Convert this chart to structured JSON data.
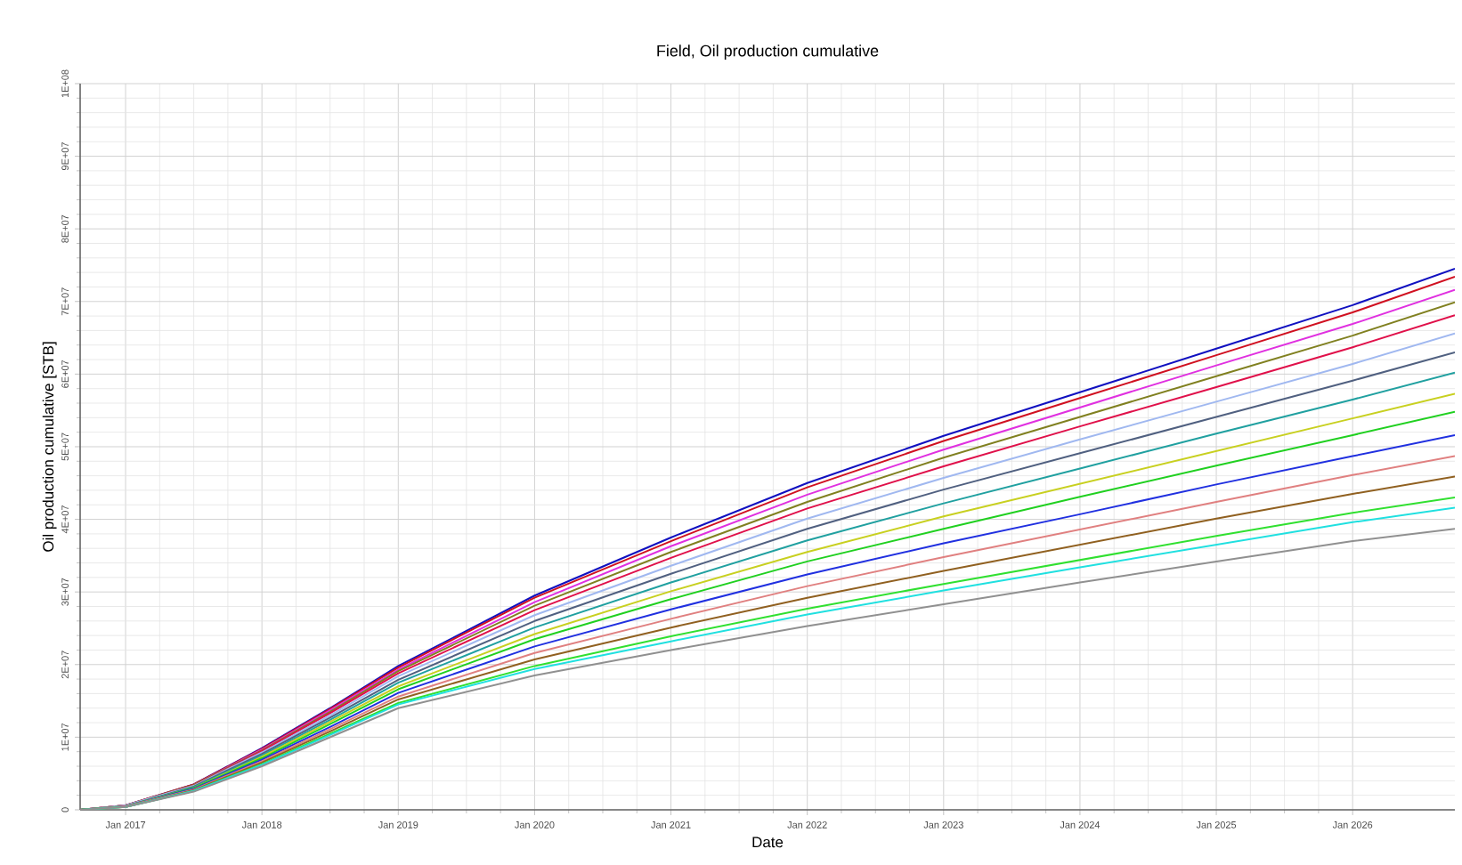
{
  "chart_data": {
    "type": "line",
    "title": "Field, Oil production cumulative",
    "xlabel": "Date",
    "ylabel": "Oil production cumulative [STB]",
    "x": [
      "2016-09",
      "2017-01",
      "2017-07",
      "2018-01",
      "2018-07",
      "2019-01",
      "2020-01",
      "2021-01",
      "2022-01",
      "2023-01",
      "2024-01",
      "2025-01",
      "2026-01",
      "2026-10"
    ],
    "xlim": [
      "2016-09",
      "2026-10"
    ],
    "xticks": [
      {
        "value": "2017-01",
        "label": "Jan 2017"
      },
      {
        "value": "2018-01",
        "label": "Jan 2018"
      },
      {
        "value": "2019-01",
        "label": "Jan 2019"
      },
      {
        "value": "2020-01",
        "label": "Jan 2020"
      },
      {
        "value": "2021-01",
        "label": "Jan 2021"
      },
      {
        "value": "2022-01",
        "label": "Jan 2022"
      },
      {
        "value": "2023-01",
        "label": "Jan 2023"
      },
      {
        "value": "2024-01",
        "label": "Jan 2024"
      },
      {
        "value": "2025-01",
        "label": "Jan 2025"
      },
      {
        "value": "2026-01",
        "label": "Jan 2026"
      }
    ],
    "ylim": [
      0,
      100000000
    ],
    "yticks": [
      0,
      {
        "value": 10000000,
        "label": "1E+07"
      },
      {
        "value": 20000000,
        "label": "2E+07"
      },
      {
        "value": 30000000,
        "label": "3E+07"
      },
      {
        "value": 40000000,
        "label": "4E+07"
      },
      {
        "value": 50000000,
        "label": "5E+07"
      },
      {
        "value": 60000000,
        "label": "6E+07"
      },
      {
        "value": 70000000,
        "label": "7E+07"
      },
      {
        "value": 80000000,
        "label": "8E+07"
      },
      {
        "value": 90000000,
        "label": "9E+07"
      },
      {
        "value": 100000000,
        "label": "1E+08"
      }
    ],
    "grid": true,
    "marker": "none",
    "line_style": "solid",
    "series": [
      {
        "color": "#1010c0",
        "values": [
          0,
          600000.0,
          3500000.0,
          8500000.0,
          14000000.0,
          19800000.0,
          29500000.0,
          37500000.0,
          45000000.0,
          51500000.0,
          57500000.0,
          63500000.0,
          69500000.0,
          74500000.0
        ]
      },
      {
        "color": "#d01020",
        "values": [
          0,
          600000.0,
          3500000.0,
          8400000.0,
          13900000.0,
          19600000.0,
          29200000.0,
          37000000.0,
          44400000.0,
          50800000.0,
          56700000.0,
          62600000.0,
          68500000.0,
          73400000.0
        ]
      },
      {
        "color": "#e030e0",
        "values": [
          null,
          null,
          3400000.0,
          8300000.0,
          13700000.0,
          19300000.0,
          28600000.0,
          36300000.0,
          43400000.0,
          49600000.0,
          55400000.0,
          61200000.0,
          66900000.0,
          71600000.0
        ]
      },
      {
        "color": "#808020",
        "values": [
          0,
          600000.0,
          3400000.0,
          8200000.0,
          13500000.0,
          19100000.0,
          28100000.0,
          35500000.0,
          42400000.0,
          48500000.0,
          54100000.0,
          59700000.0,
          65300000.0,
          69900000.0
        ]
      },
      {
        "color": "#e0104a",
        "values": [
          0,
          600000.0,
          3300000.0,
          8100000.0,
          13300000.0,
          18800000.0,
          27500000.0,
          34700000.0,
          41500000.0,
          47300000.0,
          52800000.0,
          58200000.0,
          63700000.0,
          68100000.0
        ]
      },
      {
        "color": "#a0b8f0",
        "values": [
          0,
          600000.0,
          3300000.0,
          7900000.0,
          13000000.0,
          18400000.0,
          26800000.0,
          33600000.0,
          40100000.0,
          45700000.0,
          51000000.0,
          56200000.0,
          61400000.0,
          65600000.0
        ]
      },
      {
        "color": "#506080",
        "values": [
          0,
          500000.0,
          3200000.0,
          7700000.0,
          12700000.0,
          17900000.0,
          26000000.0,
          32500000.0,
          38700000.0,
          44100000.0,
          49100000.0,
          54100000.0,
          59100000.0,
          63000000.0
        ]
      },
      {
        "color": "#20a0a0",
        "values": [
          0,
          500000.0,
          3100000.0,
          7500000.0,
          12400000.0,
          17500000.0,
          25100000.0,
          31300000.0,
          37100000.0,
          42200000.0,
          47000000.0,
          51800000.0,
          56500000.0,
          60200000.0
        ]
      },
      {
        "color": "#c8d020",
        "values": [
          0,
          500000.0,
          3000000.0,
          7300000.0,
          12100000.0,
          17000000.0,
          24200000.0,
          30100000.0,
          35500000.0,
          40400000.0,
          44900000.0,
          49400000.0,
          53900000.0,
          57300000.0
        ]
      },
      {
        "color": "#20d020",
        "values": [
          0,
          500000.0,
          3000000.0,
          7100000.0,
          11800000.0,
          16600000.0,
          23500000.0,
          29000000.0,
          34200000.0,
          38700000.0,
          43100000.0,
          47400000.0,
          51600000.0,
          54800000.0
        ]
      },
      {
        "color": "#2030e0",
        "values": [
          0,
          500000.0,
          2900000.0,
          6900000.0,
          11400000.0,
          16100000.0,
          22500000.0,
          27600000.0,
          32400000.0,
          36700000.0,
          40700000.0,
          44800000.0,
          48700000.0,
          51600000.0
        ]
      },
      {
        "color": "#e08080",
        "values": [
          0,
          500000.0,
          2800000.0,
          6700000.0,
          11100000.0,
          15600000.0,
          21600000.0,
          26300000.0,
          30800000.0,
          34800000.0,
          38600000.0,
          42400000.0,
          46100000.0,
          48700000.0
        ]
      },
      {
        "color": "#906020",
        "values": [
          0,
          400000.0,
          2700000.0,
          6500000.0,
          10800000.0,
          15200000.0,
          20700000.0,
          25100000.0,
          29200000.0,
          32900000.0,
          36500000.0,
          40100000.0,
          43500000.0,
          45900000.0
        ]
      },
      {
        "color": "#30e030",
        "values": [
          0,
          400000.0,
          2600000.0,
          6300000.0,
          10500000.0,
          14700000.0,
          19800000.0,
          23900000.0,
          27700000.0,
          31100000.0,
          34400000.0,
          37700000.0,
          40900000.0,
          43000000.0
        ]
      },
      {
        "color": "#20e0e0",
        "values": [
          0,
          400000.0,
          2600000.0,
          6200000.0,
          10300000.0,
          14500000.0,
          19400000.0,
          23200000.0,
          26900000.0,
          30200000.0,
          33400000.0,
          36500000.0,
          39600000.0,
          41600000.0
        ]
      },
      {
        "color": "#909090",
        "values": [
          0,
          400000.0,
          2500000.0,
          6000000.0,
          10000000.0,
          14000000.0,
          18500000.0,
          22000000.0,
          25300000.0,
          28300000.0,
          31300000.0,
          34200000.0,
          37000000.0,
          38700000.0
        ]
      }
    ]
  }
}
